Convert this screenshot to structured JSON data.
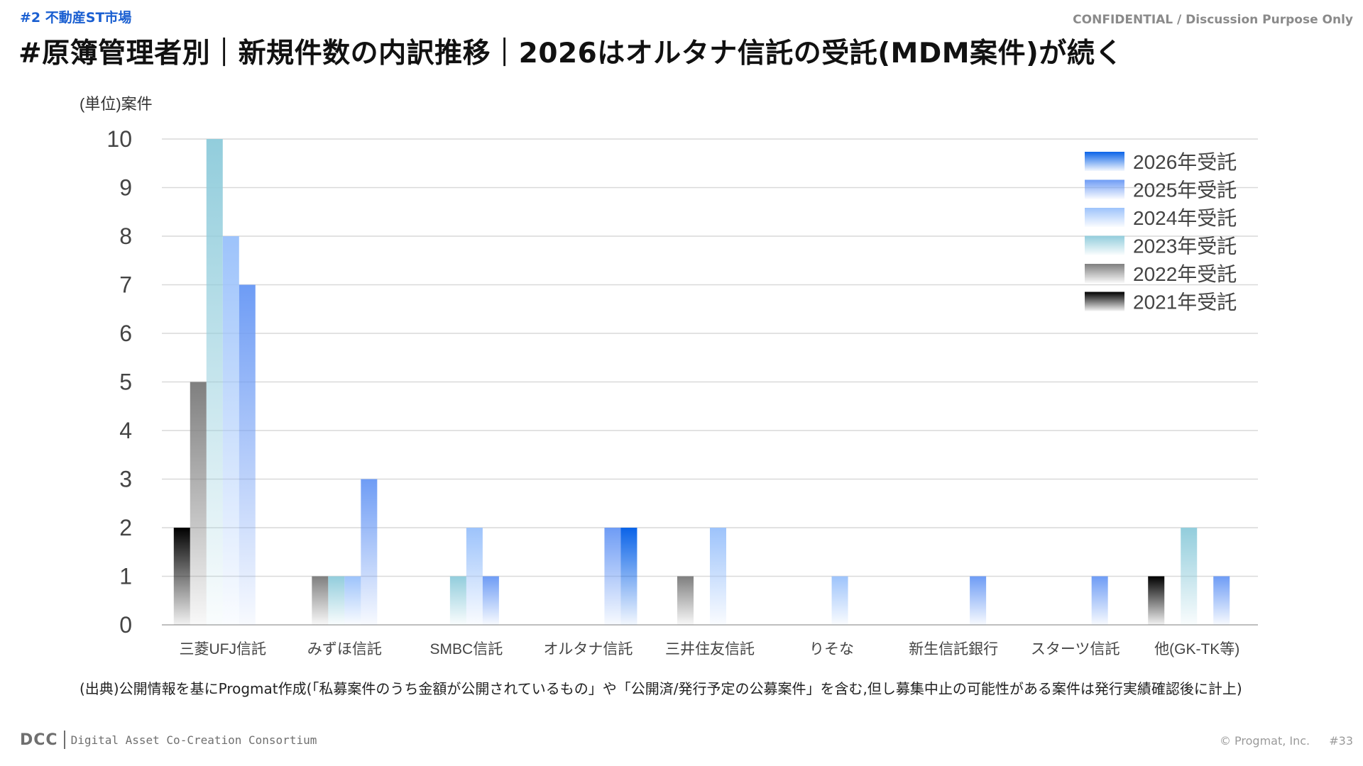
{
  "header": {
    "section_tag": "#2 不動産ST市場",
    "confidential": "CONFIDENTIAL / Discussion Purpose Only",
    "title": "#原簿管理者別｜新規件数の内訳推移｜2026はオルタナ信託の受託(MDM案件)が続く"
  },
  "chart_data": {
    "type": "bar",
    "ylabel": "(単位)案件",
    "ylim": [
      0,
      10
    ],
    "yticks": [
      0,
      1,
      2,
      3,
      4,
      5,
      6,
      7,
      8,
      9,
      10
    ],
    "grid": true,
    "legend_position": "top-right",
    "categories": [
      "三菱UFJ信託",
      "みずほ信託",
      "SMBC信託",
      "オルタナ信託",
      "三井住友信託",
      "りそな",
      "新生信託銀行",
      "スターツ信託",
      "他(GK-TK等)"
    ],
    "series": [
      {
        "name": "2021年受託",
        "color": "#000000",
        "values": [
          2,
          0,
          0,
          0,
          0,
          0,
          0,
          0,
          1
        ]
      },
      {
        "name": "2022年受託",
        "color": "#7f7f7f",
        "values": [
          5,
          1,
          0,
          0,
          1,
          0,
          0,
          0,
          0
        ]
      },
      {
        "name": "2023年受託",
        "color": "#92cddc",
        "values": [
          10,
          1,
          1,
          0,
          0,
          0,
          0,
          0,
          2
        ]
      },
      {
        "name": "2024年受託",
        "color": "#9dc3fb",
        "values": [
          8,
          1,
          2,
          0,
          2,
          1,
          0,
          0,
          0
        ]
      },
      {
        "name": "2025年受託",
        "color": "#6e9cf5",
        "values": [
          7,
          3,
          1,
          2,
          0,
          0,
          1,
          1,
          1
        ]
      },
      {
        "name": "2026年受託",
        "color": "#0a63e8",
        "values": [
          0,
          0,
          0,
          2,
          0,
          0,
          0,
          0,
          0
        ]
      }
    ]
  },
  "source_note": "(出典)公開情報を基にProgmat作成(「私募案件のうち金額が公開されているもの」や「公開済/発行予定の公募案件」を含む,但し募集中止の可能性がある案件は発行実績確認後に計上)",
  "footer": {
    "logo": "DCC",
    "consortium": "Digital Asset Co-Creation Consortium",
    "copyright": "© Progmat, Inc.",
    "page": "#33"
  }
}
